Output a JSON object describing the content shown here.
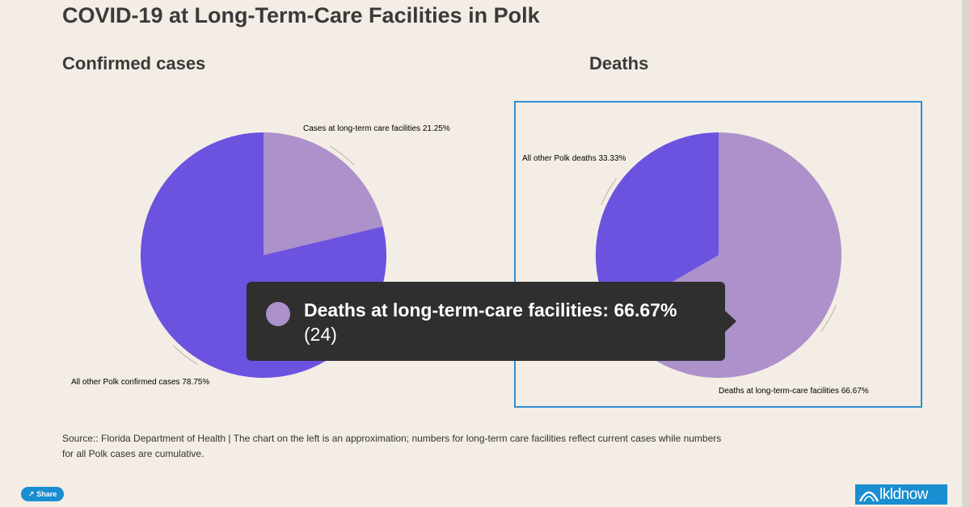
{
  "title": "COVID-19 at Long-Term-Care Facilities in Polk",
  "colors": {
    "purple_dark": "#6b52df",
    "purple_light": "#ac91ca",
    "accent_blue": "#2e8fd2"
  },
  "chart_data": [
    {
      "type": "pie",
      "title": "Confirmed cases",
      "slices": [
        {
          "label": "Cases at long-term care facilities",
          "percent_label": "21.25%",
          "value": 21.25,
          "color": "#ac91ca"
        },
        {
          "label": "All other Polk confirmed cases",
          "percent_label": "78.75%",
          "value": 78.75,
          "color": "#6b52df"
        }
      ]
    },
    {
      "type": "pie",
      "title": "Deaths",
      "slices": [
        {
          "label": "Deaths at long-term-care facilities",
          "percent_label": "66.67%",
          "value": 66.67,
          "color": "#ac91ca"
        },
        {
          "label": "All other Polk deaths",
          "percent_label": "33.33%",
          "value": 33.33,
          "color": "#6b52df"
        }
      ]
    }
  ],
  "tooltip": {
    "label": "Deaths at long-term-care facilities: 66.67%",
    "count": "(24)",
    "color": "#ac91ca"
  },
  "source": "Source:: Florida Department of Health | The chart on the left is an approximation; numbers for long-term care facilities reflect current cases while numbers for all Polk cases are cumulative.",
  "share": {
    "label": "Share",
    "icon": "share-icon"
  },
  "logo": {
    "text": "lkldnow",
    "icon": "arch-icon"
  }
}
